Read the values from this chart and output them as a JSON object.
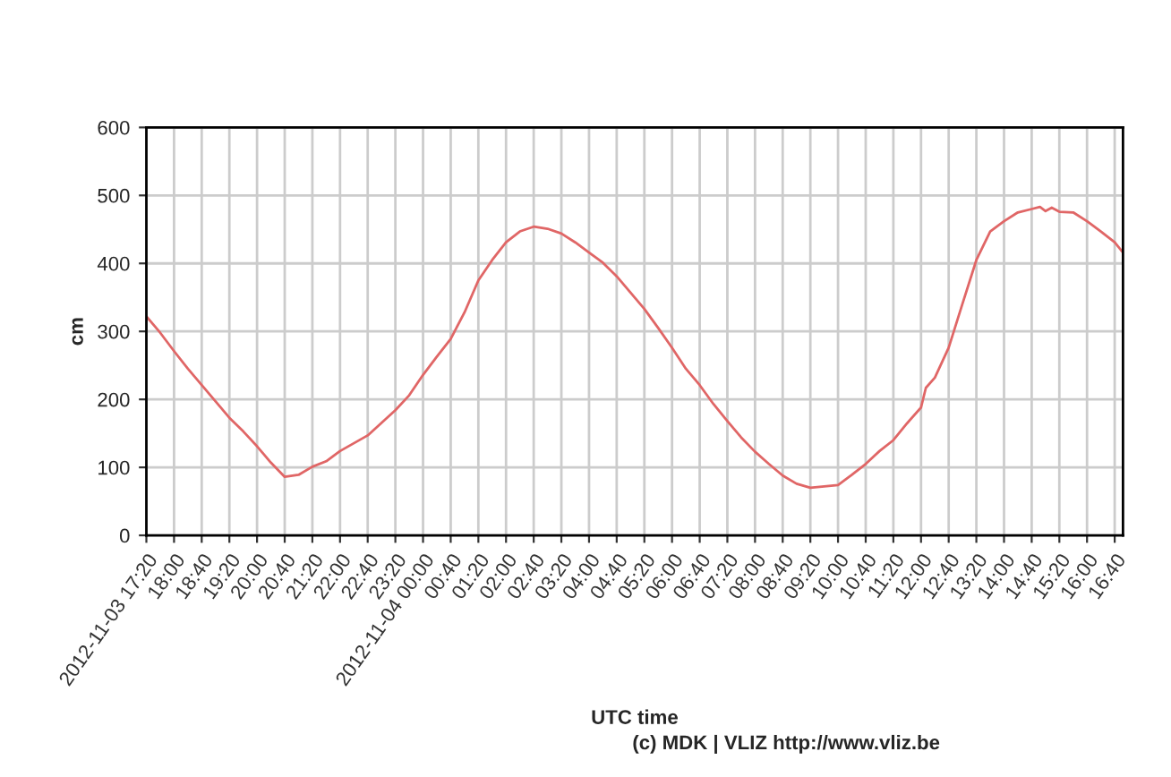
{
  "chart_data": {
    "type": "line",
    "xlabel": "UTC time",
    "ylabel": "cm",
    "annotations": [
      "(c) MDK | VLIZ http://www.vliz.be"
    ],
    "grid": true,
    "marker": "none",
    "line_style": "solid",
    "xlim": [
      "2012-11-03T17:20",
      "2012-11-04T16:52"
    ],
    "ylim": [
      0,
      600
    ],
    "yticks": [
      0,
      100,
      200,
      300,
      400,
      500,
      600
    ],
    "xticks": [
      {
        "value": "2012-11-03T17:20",
        "label": "2012-11-03 17:20"
      },
      {
        "value": "2012-11-03T18:00",
        "label": "18:00"
      },
      {
        "value": "2012-11-03T18:40",
        "label": "18:40"
      },
      {
        "value": "2012-11-03T19:20",
        "label": "19:20"
      },
      {
        "value": "2012-11-03T20:00",
        "label": "20:00"
      },
      {
        "value": "2012-11-03T20:40",
        "label": "20:40"
      },
      {
        "value": "2012-11-03T21:20",
        "label": "21:20"
      },
      {
        "value": "2012-11-03T22:00",
        "label": "22:00"
      },
      {
        "value": "2012-11-03T22:40",
        "label": "22:40"
      },
      {
        "value": "2012-11-03T23:20",
        "label": "23:20"
      },
      {
        "value": "2012-11-04T00:00",
        "label": "2012-11-04 00:00"
      },
      {
        "value": "2012-11-04T00:40",
        "label": "00:40"
      },
      {
        "value": "2012-11-04T01:20",
        "label": "01:20"
      },
      {
        "value": "2012-11-04T02:00",
        "label": "02:00"
      },
      {
        "value": "2012-11-04T02:40",
        "label": "02:40"
      },
      {
        "value": "2012-11-04T03:20",
        "label": "03:20"
      },
      {
        "value": "2012-11-04T04:00",
        "label": "04:00"
      },
      {
        "value": "2012-11-04T04:40",
        "label": "04:40"
      },
      {
        "value": "2012-11-04T05:20",
        "label": "05:20"
      },
      {
        "value": "2012-11-04T06:00",
        "label": "06:00"
      },
      {
        "value": "2012-11-04T06:40",
        "label": "06:40"
      },
      {
        "value": "2012-11-04T07:20",
        "label": "07:20"
      },
      {
        "value": "2012-11-04T08:00",
        "label": "08:00"
      },
      {
        "value": "2012-11-04T08:40",
        "label": "08:40"
      },
      {
        "value": "2012-11-04T09:20",
        "label": "09:20"
      },
      {
        "value": "2012-11-04T10:00",
        "label": "10:00"
      },
      {
        "value": "2012-11-04T10:40",
        "label": "10:40"
      },
      {
        "value": "2012-11-04T11:20",
        "label": "11:20"
      },
      {
        "value": "2012-11-04T12:00",
        "label": "12:00"
      },
      {
        "value": "2012-11-04T12:40",
        "label": "12:40"
      },
      {
        "value": "2012-11-04T13:20",
        "label": "13:20"
      },
      {
        "value": "2012-11-04T14:00",
        "label": "14:00"
      },
      {
        "value": "2012-11-04T14:40",
        "label": "14:40"
      },
      {
        "value": "2012-11-04T15:20",
        "label": "15:20"
      },
      {
        "value": "2012-11-04T16:00",
        "label": "16:00"
      },
      {
        "value": "2012-11-04T16:40",
        "label": "16:40"
      }
    ],
    "series": [
      {
        "color": "#e06666",
        "x": [
          "2012-11-03T17:20",
          "2012-11-03T17:40",
          "2012-11-03T18:00",
          "2012-11-03T18:20",
          "2012-11-03T18:40",
          "2012-11-03T19:00",
          "2012-11-03T19:20",
          "2012-11-03T19:40",
          "2012-11-03T20:00",
          "2012-11-03T20:20",
          "2012-11-03T20:40",
          "2012-11-03T21:00",
          "2012-11-03T21:20",
          "2012-11-03T21:40",
          "2012-11-03T22:00",
          "2012-11-03T22:40",
          "2012-11-03T23:20",
          "2012-11-03T23:40",
          "2012-11-04T00:00",
          "2012-11-04T00:20",
          "2012-11-04T00:40",
          "2012-11-04T01:00",
          "2012-11-04T01:20",
          "2012-11-04T01:40",
          "2012-11-04T02:00",
          "2012-11-04T02:20",
          "2012-11-04T02:40",
          "2012-11-04T03:00",
          "2012-11-04T03:20",
          "2012-11-04T03:40",
          "2012-11-04T04:00",
          "2012-11-04T04:20",
          "2012-11-04T04:40",
          "2012-11-04T05:00",
          "2012-11-04T05:20",
          "2012-11-04T05:40",
          "2012-11-04T06:00",
          "2012-11-04T06:20",
          "2012-11-04T06:40",
          "2012-11-04T07:00",
          "2012-11-04T07:20",
          "2012-11-04T07:40",
          "2012-11-04T08:00",
          "2012-11-04T08:20",
          "2012-11-04T08:40",
          "2012-11-04T09:00",
          "2012-11-04T09:20",
          "2012-11-04T09:40",
          "2012-11-04T10:00",
          "2012-11-04T10:20",
          "2012-11-04T10:40",
          "2012-11-04T11:00",
          "2012-11-04T11:20",
          "2012-11-04T11:40",
          "2012-11-04T12:00",
          "2012-11-04T12:07",
          "2012-11-04T12:20",
          "2012-11-04T12:40",
          "2012-11-04T13:00",
          "2012-11-04T13:20",
          "2012-11-04T13:40",
          "2012-11-04T14:00",
          "2012-11-04T14:20",
          "2012-11-04T14:40",
          "2012-11-04T14:52",
          "2012-11-04T15:00",
          "2012-11-04T15:09",
          "2012-11-04T15:20",
          "2012-11-04T15:40",
          "2012-11-04T16:00",
          "2012-11-04T16:20",
          "2012-11-04T16:40",
          "2012-11-04T16:52"
        ],
        "values": [
          322,
          298,
          271,
          245,
          221,
          197,
          173,
          153,
          131,
          107,
          86,
          89,
          101,
          109,
          124,
          147,
          184,
          206,
          236,
          263,
          289,
          328,
          375,
          405,
          431,
          447,
          454,
          451,
          444,
          431,
          416,
          401,
          381,
          357,
          333,
          305,
          276,
          245,
          221,
          193,
          168,
          144,
          123,
          105,
          88,
          76,
          70,
          72,
          74,
          89,
          105,
          124,
          140,
          165,
          188,
          217,
          232,
          276,
          341,
          405,
          447,
          462,
          475,
          480,
          483,
          477,
          482,
          476,
          475,
          462,
          447,
          431,
          416
        ]
      }
    ]
  }
}
